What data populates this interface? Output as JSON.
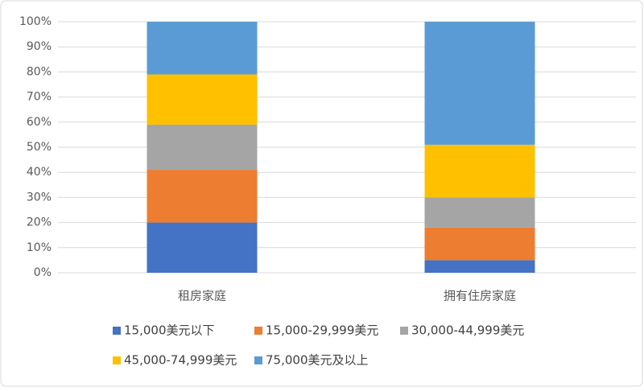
{
  "chart_data": {
    "type": "stacked_bar",
    "categories": [
      "租房家庭",
      "拥有住房家庭"
    ],
    "series": [
      {
        "name": "15,000美元以下",
        "color": "#4472c4",
        "values": [
          20,
          5
        ]
      },
      {
        "name": "15,000-29,999美元",
        "color": "#ed7d31",
        "values": [
          21,
          13
        ]
      },
      {
        "name": "30,000-44,999美元",
        "color": "#a5a5a5",
        "values": [
          18,
          12
        ]
      },
      {
        "name": "45,000-74,999美元",
        "color": "#ffc000",
        "values": [
          20,
          21
        ]
      },
      {
        "name": "75,000美元及以上",
        "color": "#5b9bd5",
        "values": [
          21,
          49
        ]
      }
    ],
    "ylim": [
      0,
      100
    ],
    "yticks": [
      {
        "value": 0,
        "label": "0%"
      },
      {
        "value": 10,
        "label": "10%"
      },
      {
        "value": 20,
        "label": "20%"
      },
      {
        "value": 30,
        "label": "30%"
      },
      {
        "value": 40,
        "label": "40%"
      },
      {
        "value": 50,
        "label": "50%"
      },
      {
        "value": 60,
        "label": "60%"
      },
      {
        "value": 70,
        "label": "70%"
      },
      {
        "value": 80,
        "label": "80%"
      },
      {
        "value": 90,
        "label": "90%"
      },
      {
        "value": 100,
        "label": "100%"
      }
    ],
    "grid": true,
    "legend": "bottom"
  }
}
